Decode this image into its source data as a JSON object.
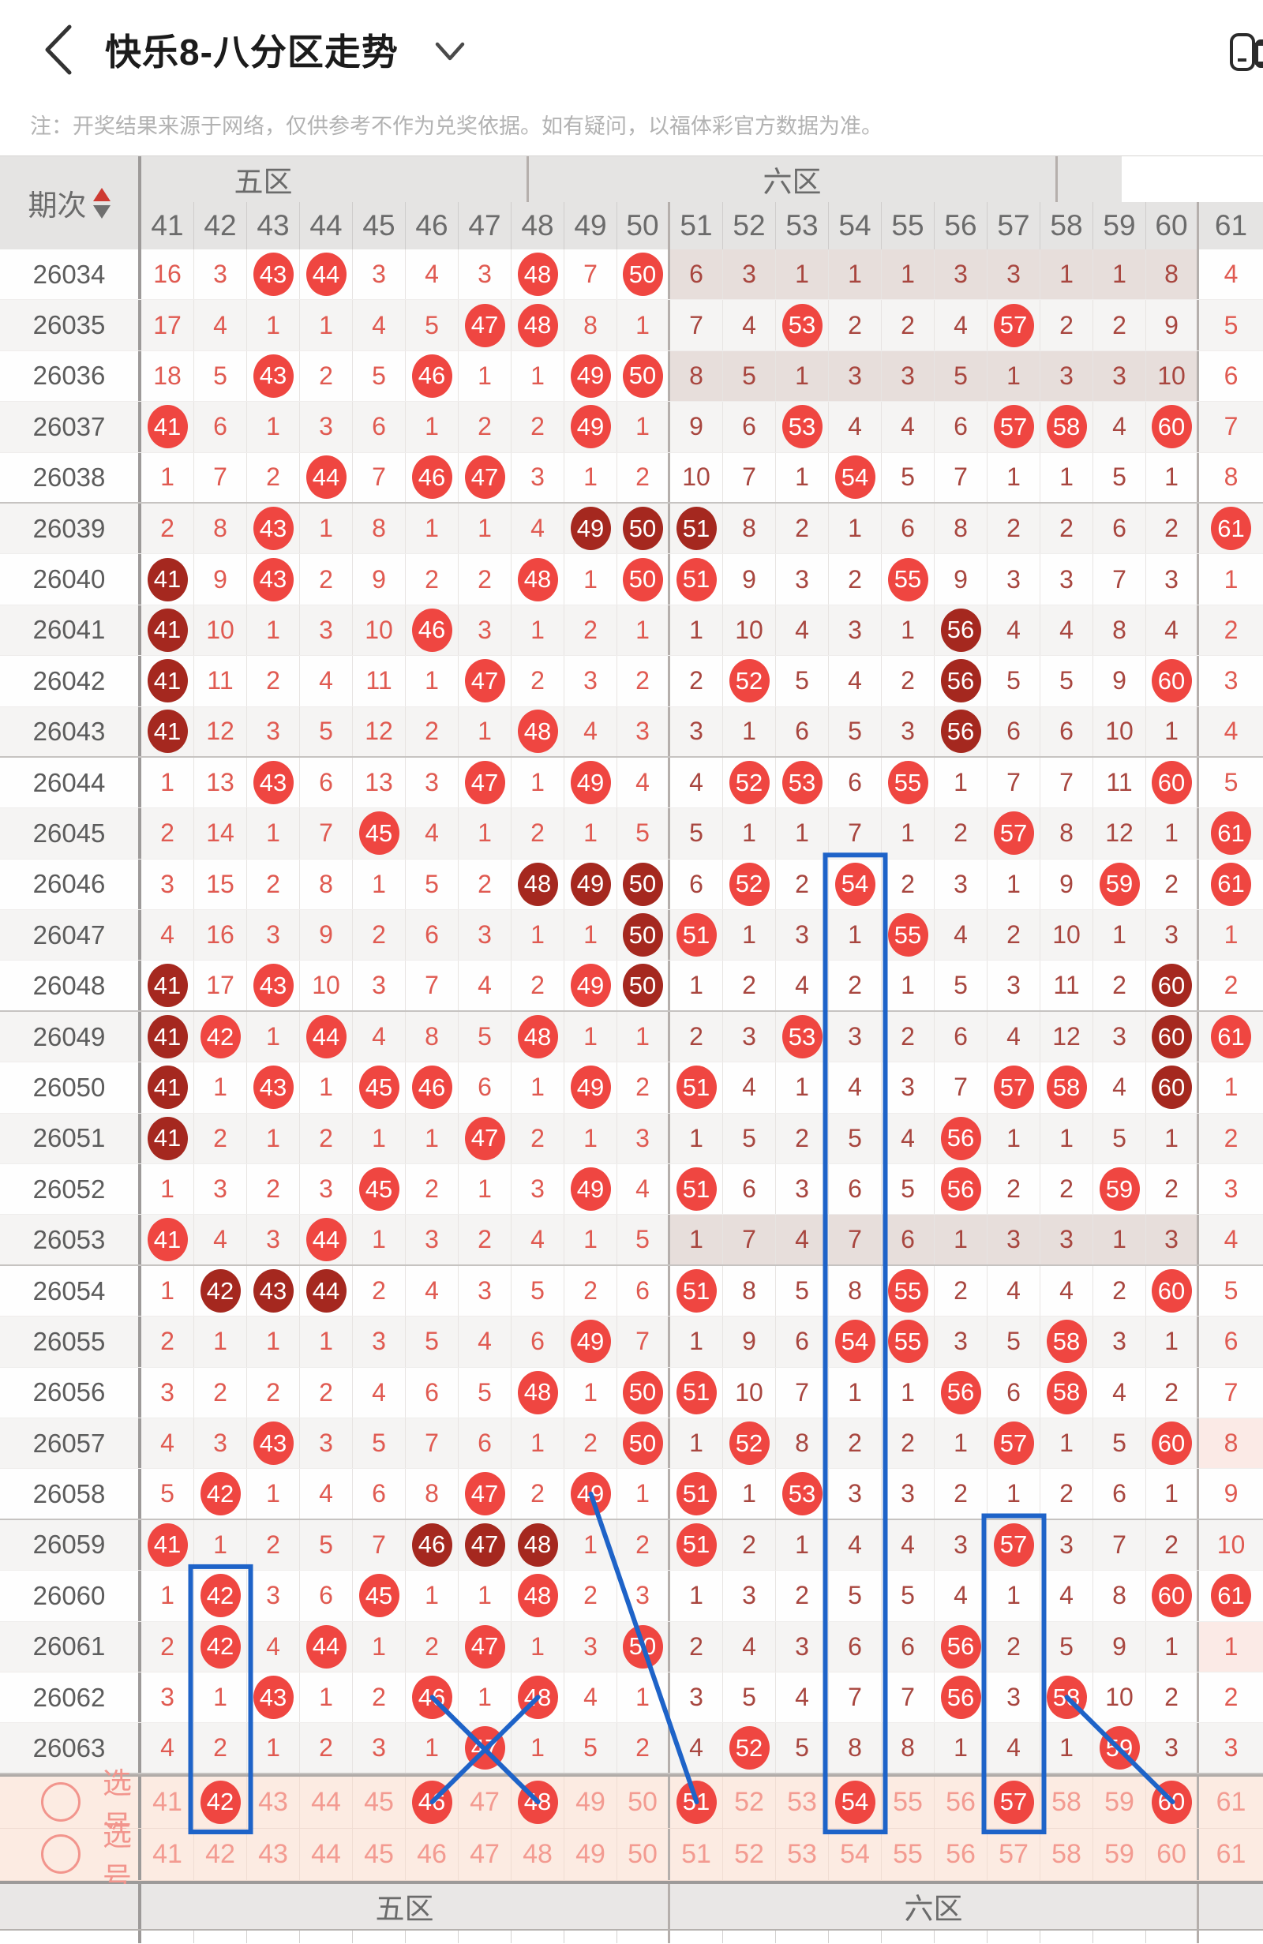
{
  "nav": {
    "title": "快乐8-八分区走势",
    "back_icon": "chevron-left",
    "dropdown_icon": "chevron-down",
    "share_icon": "share-to-device"
  },
  "note": "注：开奖结果来源于网络，仅供参考不作为兑奖依据。如有疑问，以福体彩官方数据为准。",
  "colors": {
    "hit_ball": "#ef4641",
    "streak_ball": "#a5281f",
    "miss_text_zone5": "#e05a51",
    "miss_text_zone6": "#a8463f",
    "pick_text": "#f39b91",
    "pick_bg": "#fcebe2",
    "zone_miss_band6": "#e7dedb",
    "zone_miss_band7": "#fbeae6",
    "annotation_blue": "#1e63c8",
    "sort_up_red": "#ce3a32"
  },
  "table": {
    "period_header": "期次",
    "zone_headers": [
      {
        "label": "五区",
        "cols": [
          41,
          42,
          43,
          44,
          45,
          46,
          47,
          48,
          49,
          50
        ]
      },
      {
        "label": "六区",
        "cols": [
          51,
          52,
          53,
          54,
          55,
          56,
          57,
          58,
          59,
          60
        ]
      },
      {
        "label": "",
        "cols": [
          61
        ]
      }
    ],
    "columns": [
      41,
      42,
      43,
      44,
      45,
      46,
      47,
      48,
      49,
      50,
      51,
      52,
      53,
      54,
      55,
      56,
      57,
      58,
      59,
      60,
      61
    ],
    "cell_codes": {
      "*": "hit",
      "#": "streak-hit",
      "plain": "miss-count"
    },
    "rows": [
      {
        "period": "26034",
        "cells": [
          "16",
          "3",
          "*43",
          "*44",
          "3",
          "4",
          "3",
          "*48",
          "7",
          "*50",
          "6",
          "3",
          "1",
          "1",
          "1",
          "3",
          "3",
          "1",
          "1",
          "8",
          "4"
        ],
        "band6": true
      },
      {
        "period": "26035",
        "cells": [
          "17",
          "4",
          "1",
          "1",
          "4",
          "5",
          "*47",
          "*48",
          "8",
          "1",
          "7",
          "4",
          "*53",
          "2",
          "2",
          "4",
          "*57",
          "2",
          "2",
          "9",
          "5"
        ]
      },
      {
        "period": "26036",
        "cells": [
          "18",
          "5",
          "*43",
          "2",
          "5",
          "*46",
          "1",
          "1",
          "*49",
          "*50",
          "8",
          "5",
          "1",
          "3",
          "3",
          "5",
          "1",
          "3",
          "3",
          "10",
          "6"
        ],
        "band6": true
      },
      {
        "period": "26037",
        "cells": [
          "*41",
          "6",
          "1",
          "3",
          "6",
          "1",
          "2",
          "2",
          "*49",
          "1",
          "9",
          "6",
          "*53",
          "4",
          "4",
          "6",
          "*57",
          "*58",
          "4",
          "*60",
          "7"
        ]
      },
      {
        "period": "26038",
        "cells": [
          "1",
          "7",
          "2",
          "*44",
          "7",
          "*46",
          "*47",
          "3",
          "1",
          "2",
          "10",
          "7",
          "1",
          "*54",
          "5",
          "7",
          "1",
          "1",
          "5",
          "1",
          "8"
        ]
      },
      {
        "period": "26039",
        "cells": [
          "2",
          "8",
          "*43",
          "1",
          "8",
          "1",
          "1",
          "4",
          "#49",
          "#50",
          "#51",
          "8",
          "2",
          "1",
          "6",
          "8",
          "2",
          "2",
          "6",
          "2",
          "*61"
        ]
      },
      {
        "period": "26040",
        "cells": [
          "#41",
          "9",
          "*43",
          "2",
          "9",
          "2",
          "2",
          "*48",
          "1",
          "*50",
          "*51",
          "9",
          "3",
          "2",
          "*55",
          "9",
          "3",
          "3",
          "7",
          "3",
          "1"
        ]
      },
      {
        "period": "26041",
        "cells": [
          "#41",
          "10",
          "1",
          "3",
          "10",
          "*46",
          "3",
          "1",
          "2",
          "1",
          "1",
          "10",
          "4",
          "3",
          "1",
          "#56",
          "4",
          "4",
          "8",
          "4",
          "2"
        ]
      },
      {
        "period": "26042",
        "cells": [
          "#41",
          "11",
          "2",
          "4",
          "11",
          "1",
          "*47",
          "2",
          "3",
          "2",
          "2",
          "*52",
          "5",
          "4",
          "2",
          "#56",
          "5",
          "5",
          "9",
          "*60",
          "3"
        ]
      },
      {
        "period": "26043",
        "cells": [
          "#41",
          "12",
          "3",
          "5",
          "12",
          "2",
          "1",
          "*48",
          "4",
          "3",
          "3",
          "1",
          "6",
          "5",
          "3",
          "#56",
          "6",
          "6",
          "10",
          "1",
          "4"
        ]
      },
      {
        "period": "26044",
        "cells": [
          "1",
          "13",
          "*43",
          "6",
          "13",
          "3",
          "*47",
          "1",
          "*49",
          "4",
          "4",
          "*52",
          "*53",
          "6",
          "*55",
          "1",
          "7",
          "7",
          "11",
          "*60",
          "5"
        ]
      },
      {
        "period": "26045",
        "cells": [
          "2",
          "14",
          "1",
          "7",
          "*45",
          "4",
          "1",
          "2",
          "1",
          "5",
          "5",
          "1",
          "1",
          "7",
          "1",
          "2",
          "*57",
          "8",
          "12",
          "1",
          "*61"
        ]
      },
      {
        "period": "26046",
        "cells": [
          "3",
          "15",
          "2",
          "8",
          "1",
          "5",
          "2",
          "#48",
          "#49",
          "#50",
          "6",
          "*52",
          "2",
          "*54",
          "2",
          "3",
          "1",
          "9",
          "*59",
          "2",
          "*61"
        ]
      },
      {
        "period": "26047",
        "cells": [
          "4",
          "16",
          "3",
          "9",
          "2",
          "6",
          "3",
          "1",
          "1",
          "#50",
          "*51",
          "1",
          "3",
          "1",
          "*55",
          "4",
          "2",
          "10",
          "1",
          "3",
          "1"
        ]
      },
      {
        "period": "26048",
        "cells": [
          "#41",
          "17",
          "*43",
          "10",
          "3",
          "7",
          "4",
          "2",
          "*49",
          "#50",
          "1",
          "2",
          "4",
          "2",
          "1",
          "5",
          "3",
          "11",
          "2",
          "#60",
          "2"
        ]
      },
      {
        "period": "26049",
        "cells": [
          "#41",
          "*42",
          "1",
          "*44",
          "4",
          "8",
          "5",
          "*48",
          "1",
          "1",
          "2",
          "3",
          "*53",
          "3",
          "2",
          "6",
          "4",
          "12",
          "3",
          "#60",
          "*61"
        ]
      },
      {
        "period": "26050",
        "cells": [
          "#41",
          "1",
          "*43",
          "1",
          "*45",
          "*46",
          "6",
          "1",
          "*49",
          "2",
          "*51",
          "4",
          "1",
          "4",
          "3",
          "7",
          "*57",
          "*58",
          "4",
          "#60",
          "1"
        ]
      },
      {
        "period": "26051",
        "cells": [
          "#41",
          "2",
          "1",
          "2",
          "1",
          "1",
          "*47",
          "2",
          "1",
          "3",
          "1",
          "5",
          "2",
          "5",
          "4",
          "*56",
          "1",
          "1",
          "5",
          "1",
          "2"
        ]
      },
      {
        "period": "26052",
        "cells": [
          "1",
          "3",
          "2",
          "3",
          "*45",
          "2",
          "1",
          "3",
          "*49",
          "4",
          "*51",
          "6",
          "3",
          "6",
          "5",
          "*56",
          "2",
          "2",
          "*59",
          "2",
          "3"
        ]
      },
      {
        "period": "26053",
        "cells": [
          "*41",
          "4",
          "3",
          "*44",
          "1",
          "3",
          "2",
          "4",
          "1",
          "5",
          "1",
          "7",
          "4",
          "7",
          "6",
          "1",
          "3",
          "3",
          "1",
          "3",
          "4"
        ],
        "band6": true
      },
      {
        "period": "26054",
        "cells": [
          "1",
          "#42",
          "#43",
          "#44",
          "2",
          "4",
          "3",
          "5",
          "2",
          "6",
          "*51",
          "8",
          "5",
          "8",
          "*55",
          "2",
          "4",
          "4",
          "2",
          "*60",
          "5"
        ]
      },
      {
        "period": "26055",
        "cells": [
          "2",
          "1",
          "1",
          "1",
          "3",
          "5",
          "4",
          "6",
          "*49",
          "7",
          "1",
          "9",
          "6",
          "*54",
          "*55",
          "3",
          "5",
          "*58",
          "3",
          "1",
          "6"
        ]
      },
      {
        "period": "26056",
        "cells": [
          "3",
          "2",
          "2",
          "2",
          "4",
          "6",
          "5",
          "*48",
          "1",
          "*50",
          "*51",
          "10",
          "7",
          "1",
          "1",
          "*56",
          "6",
          "*58",
          "4",
          "2",
          "7"
        ]
      },
      {
        "period": "26057",
        "cells": [
          "4",
          "3",
          "*43",
          "3",
          "5",
          "7",
          "6",
          "1",
          "2",
          "*50",
          "1",
          "*52",
          "8",
          "2",
          "2",
          "1",
          "*57",
          "1",
          "5",
          "*60",
          "8"
        ],
        "band7": true
      },
      {
        "period": "26058",
        "cells": [
          "5",
          "*42",
          "1",
          "4",
          "6",
          "8",
          "*47",
          "2",
          "*49",
          "1",
          "*51",
          "1",
          "*53",
          "3",
          "3",
          "2",
          "1",
          "2",
          "6",
          "1",
          "9"
        ]
      },
      {
        "period": "26059",
        "cells": [
          "*41",
          "1",
          "2",
          "5",
          "7",
          "#46",
          "#47",
          "#48",
          "1",
          "2",
          "*51",
          "2",
          "1",
          "4",
          "4",
          "3",
          "*57",
          "3",
          "7",
          "2",
          "10"
        ]
      },
      {
        "period": "26060",
        "cells": [
          "1",
          "*42",
          "3",
          "6",
          "*45",
          "1",
          "1",
          "*48",
          "2",
          "3",
          "1",
          "3",
          "2",
          "5",
          "5",
          "4",
          "1",
          "4",
          "8",
          "*60",
          "*61"
        ]
      },
      {
        "period": "26061",
        "cells": [
          "2",
          "*42",
          "4",
          "*44",
          "1",
          "2",
          "*47",
          "1",
          "3",
          "*50",
          "2",
          "4",
          "3",
          "6",
          "6",
          "*56",
          "2",
          "5",
          "9",
          "1",
          "1"
        ],
        "band7": true
      },
      {
        "period": "26062",
        "cells": [
          "3",
          "1",
          "*43",
          "1",
          "2",
          "*46",
          "1",
          "*48",
          "4",
          "1",
          "3",
          "5",
          "4",
          "7",
          "7",
          "*56",
          "3",
          "*58",
          "10",
          "2",
          "2"
        ]
      },
      {
        "period": "26063",
        "cells": [
          "4",
          "2",
          "1",
          "2",
          "3",
          "1",
          "*47",
          "1",
          "5",
          "2",
          "4",
          "*52",
          "5",
          "8",
          "8",
          "1",
          "4",
          "1",
          "*59",
          "3",
          "3"
        ]
      }
    ],
    "pick_rows": [
      {
        "label": "选号",
        "numbers": [
          41,
          42,
          43,
          44,
          45,
          46,
          47,
          48,
          49,
          50,
          51,
          52,
          53,
          54,
          55,
          56,
          57,
          58,
          59,
          60,
          61
        ],
        "selected": [
          42,
          46,
          48,
          51,
          54,
          57,
          60
        ]
      },
      {
        "label": "选号",
        "numbers": [
          41,
          42,
          43,
          44,
          45,
          46,
          47,
          48,
          49,
          50,
          51,
          52,
          53,
          54,
          55,
          56,
          57,
          58,
          59,
          60,
          61
        ],
        "selected": []
      }
    ],
    "footer": {
      "period_label": "-",
      "zone_labels": [
        "五区",
        "六区",
        ""
      ]
    }
  },
  "annotations": {
    "color": "#1e63c8",
    "boxes": [
      {
        "col": 42,
        "from_period": "26060",
        "to": "pick-row-1"
      },
      {
        "col": 54,
        "from_period": "26046",
        "to": "pick-row-1"
      },
      {
        "col": 57,
        "from_period": "26059",
        "to": "pick-row-1"
      }
    ],
    "lines": [
      {
        "from_period": "26058",
        "from_col": 49,
        "to": "pick-row-1",
        "to_col": 51
      },
      {
        "from_period": "26062",
        "from_col": 46,
        "to": "pick-row-1",
        "to_col": 48
      },
      {
        "from_period": "26062",
        "from_col": 48,
        "to": "pick-row-1",
        "to_col": 46
      },
      {
        "from_period": "26062",
        "from_col": 58,
        "to": "pick-row-1",
        "to_col": 60
      }
    ]
  }
}
